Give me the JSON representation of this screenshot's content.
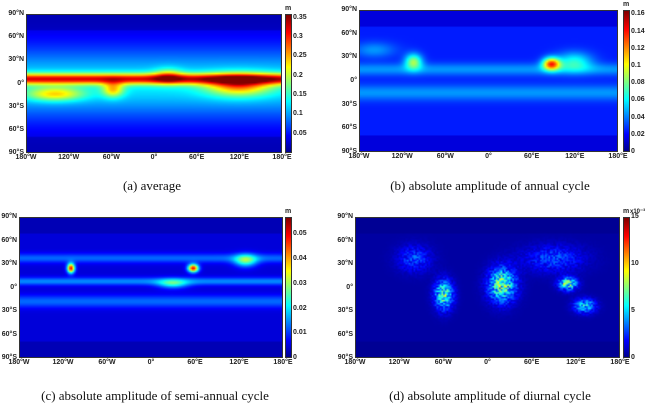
{
  "chart_data": [
    {
      "type": "heatmap",
      "id": "a",
      "caption": "(a) average",
      "colorbar": {
        "unit": "m",
        "range": [
          0,
          0.36
        ],
        "ticks": [
          "0.05",
          "0.1",
          "0.15",
          "0.2",
          "0.25",
          "0.3",
          "0.35"
        ],
        "tick_values": [
          0.05,
          0.1,
          0.15,
          0.2,
          0.25,
          0.3,
          0.35
        ],
        "exponent": ""
      },
      "colormap": "jet"
    },
    {
      "type": "heatmap",
      "id": "b",
      "caption": "(b) absolute amplitude of annual cycle",
      "colorbar": {
        "unit": "m",
        "range": [
          0,
          0.165
        ],
        "ticks": [
          "0",
          "0.02",
          "0.04",
          "0.06",
          "0.08",
          "0.1",
          "0.12",
          "0.14",
          "0.16"
        ],
        "tick_values": [
          0,
          0.02,
          0.04,
          0.06,
          0.08,
          0.1,
          0.12,
          0.14,
          0.16
        ],
        "exponent": ""
      },
      "colormap": "jet"
    },
    {
      "type": "heatmap",
      "id": "c",
      "caption": "(c) absolute amplitude of semi-annual cycle",
      "colorbar": {
        "unit": "m",
        "range": [
          0,
          0.057
        ],
        "ticks": [
          "0",
          "0.01",
          "0.02",
          "0.03",
          "0.04",
          "0.05"
        ],
        "tick_values": [
          0,
          0.01,
          0.02,
          0.03,
          0.04,
          0.05
        ],
        "exponent": ""
      },
      "colormap": "jet"
    },
    {
      "type": "heatmap",
      "id": "d",
      "caption": "(d) absolute amplitude of diurnal cycle",
      "colorbar": {
        "unit": "m",
        "range": [
          0,
          15
        ],
        "ticks": [
          "0",
          "5",
          "10",
          "15"
        ],
        "tick_values": [
          0,
          5,
          10,
          15
        ],
        "exponent": "x10⁻³"
      },
      "colormap": "jet"
    }
  ],
  "axes": {
    "lat_ticks": [
      "90°N",
      "60°N",
      "30°N",
      "0°",
      "30°S",
      "60°S",
      "90°S"
    ],
    "lon_ticks": [
      "180°W",
      "120°W",
      "60°W",
      "0°",
      "60°E",
      "120°E",
      "180°E"
    ]
  }
}
